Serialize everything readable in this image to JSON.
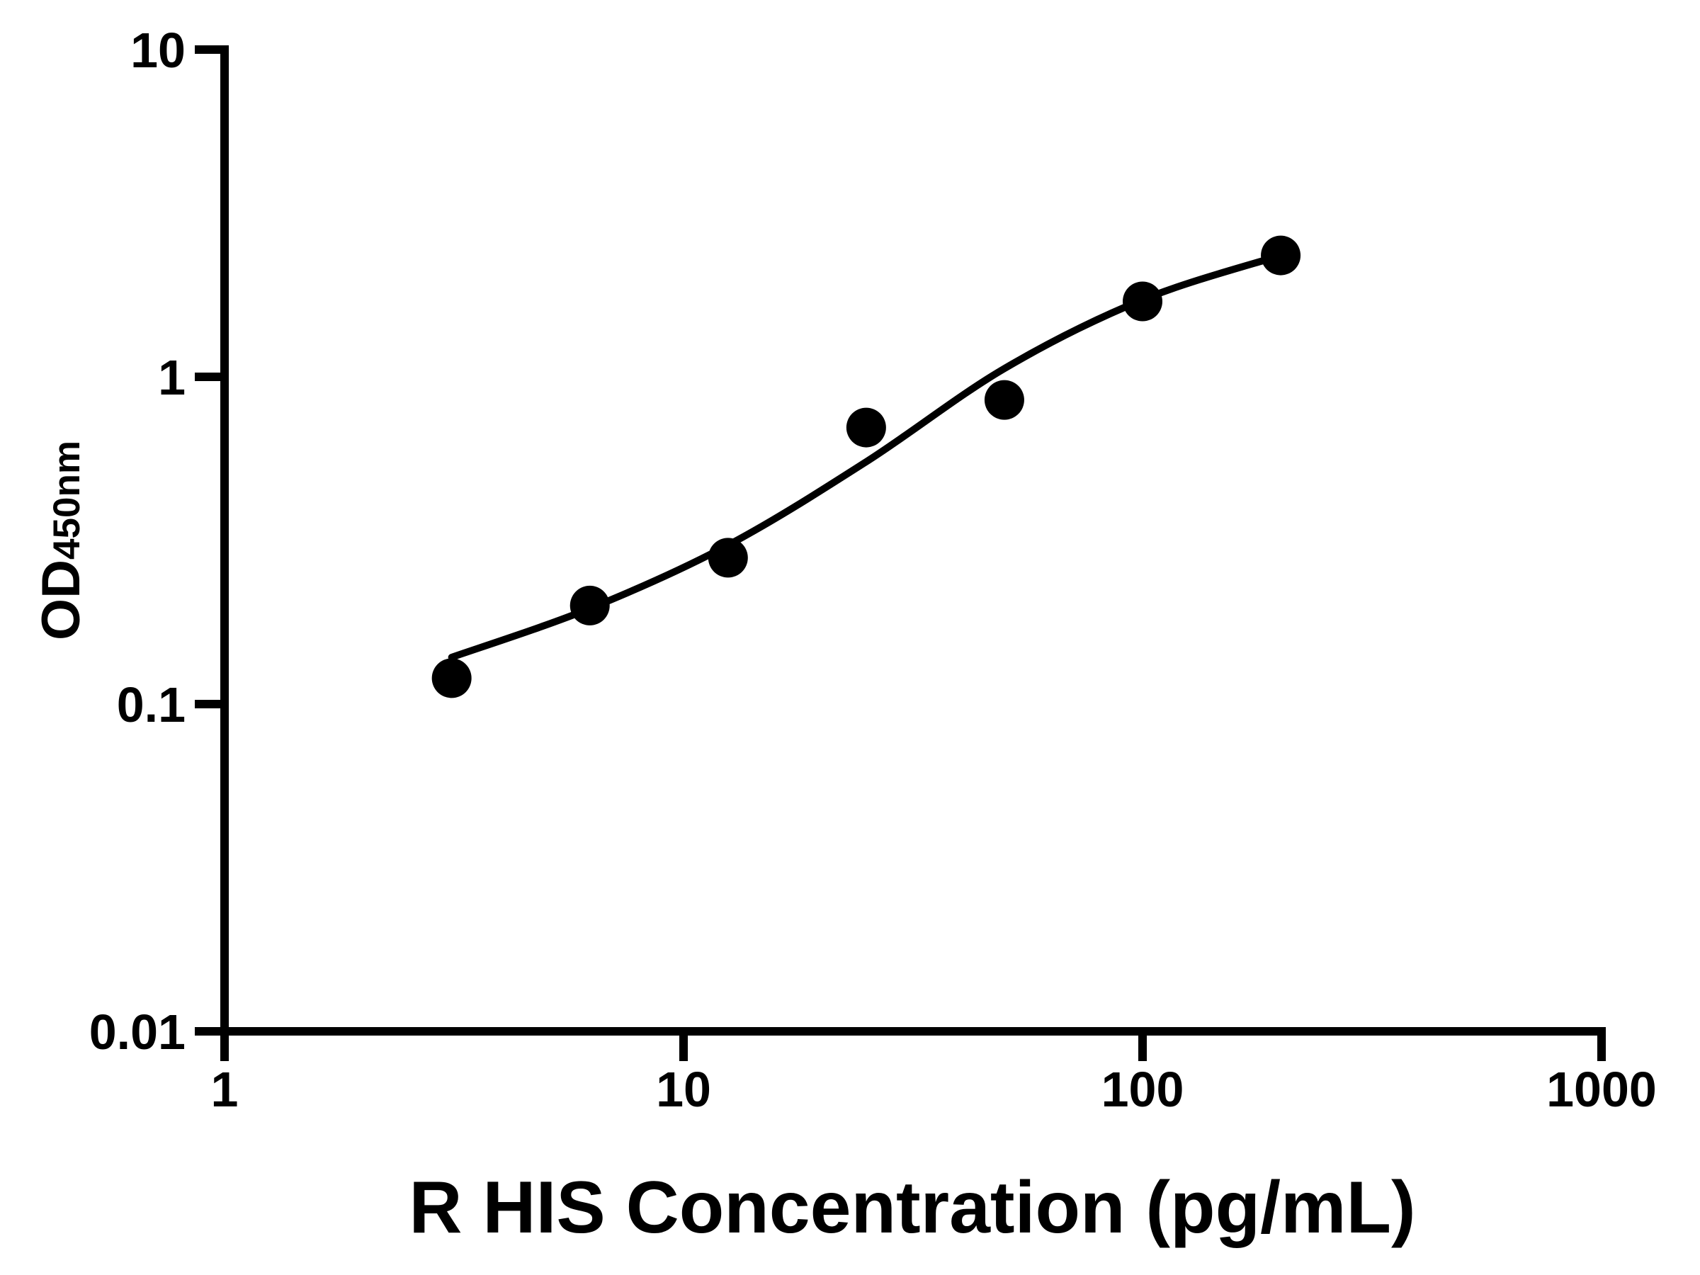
{
  "figure": {
    "background": "#ffffff"
  },
  "chart_data": {
    "type": "scatter",
    "title": "",
    "xlabel": "R HIS Concentration (pg/mL)",
    "ylabel": "OD450nm",
    "ylabel_main": "OD",
    "ylabel_sub": "450nm",
    "x_scale": "log10",
    "y_scale": "log10",
    "xlim": [
      1,
      1000
    ],
    "ylim": [
      0.01,
      10
    ],
    "x_ticks": [
      1,
      10,
      100,
      1000
    ],
    "x_tick_labels": [
      "1",
      "10",
      "100",
      "1000"
    ],
    "y_ticks": [
      10,
      1,
      0.1,
      0.01
    ],
    "y_tick_labels": [
      "10",
      "1",
      "0.1",
      "0.01"
    ],
    "grid": false,
    "legend_position": "none",
    "colors": {
      "axis": "#000000",
      "text": "#000000",
      "marker": "#000000",
      "curve": "#000000",
      "background": "#ffffff"
    },
    "series": [
      {
        "name": "standard-points",
        "type": "scatter",
        "marker": "filled-circle",
        "x": [
          3.125,
          6.25,
          12.5,
          25,
          50,
          100,
          200
        ],
        "y": [
          0.12,
          0.2,
          0.28,
          0.7,
          0.85,
          1.7,
          2.35
        ]
      },
      {
        "name": "fit-curve",
        "type": "line",
        "fit": "4PL-sigmoid",
        "x": [
          3.125,
          6.25,
          12.5,
          25,
          50,
          100,
          200
        ],
        "y": [
          0.139,
          0.196,
          0.306,
          0.55,
          1.06,
          1.72,
          2.35
        ]
      }
    ]
  }
}
